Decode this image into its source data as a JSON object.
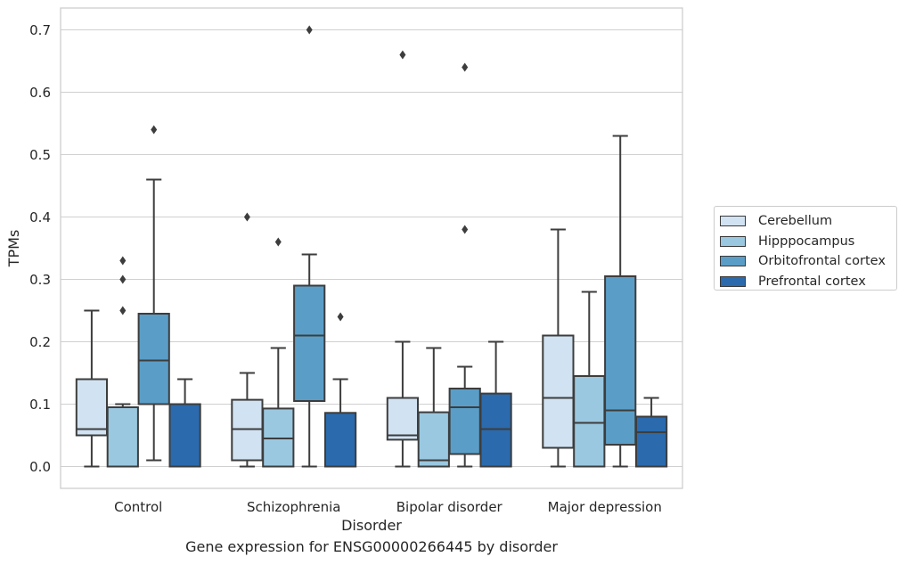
{
  "chart_data": {
    "type": "box",
    "title": "",
    "caption": "Gene expression for ENSG00000266445 by disorder",
    "xlabel": "Disorder",
    "ylabel": "TPMs",
    "ylim": [
      -0.035,
      0.735
    ],
    "yticks": [
      0.0,
      0.1,
      0.2,
      0.3,
      0.4,
      0.5,
      0.6,
      0.7
    ],
    "ytick_labels": [
      "0.0",
      "0.1",
      "0.2",
      "0.3",
      "0.4",
      "0.5",
      "0.6",
      "0.7"
    ],
    "grid": "horizontal",
    "legend_position": "right",
    "categories": [
      "Control",
      "Schizophrenia",
      "Bipolar disorder",
      "Major depression"
    ],
    "series": [
      {
        "name": "Cerebellum",
        "color": "#d1e2f2",
        "boxes": [
          {
            "q1": 0.05,
            "median": 0.06,
            "q3": 0.14,
            "whisker_low": 0.0,
            "whisker_high": 0.25,
            "outliers": []
          },
          {
            "q1": 0.01,
            "median": 0.06,
            "q3": 0.107,
            "whisker_low": 0.0,
            "whisker_high": 0.15,
            "outliers": [
              0.4
            ]
          },
          {
            "q1": 0.043,
            "median": 0.05,
            "q3": 0.11,
            "whisker_low": 0.0,
            "whisker_high": 0.2,
            "outliers": [
              0.66
            ]
          },
          {
            "q1": 0.03,
            "median": 0.11,
            "q3": 0.21,
            "whisker_low": 0.0,
            "whisker_high": 0.38,
            "outliers": []
          }
        ]
      },
      {
        "name": "Hipppocampus",
        "color": "#9ac8e0",
        "boxes": [
          {
            "q1": 0.0,
            "median": 0.0,
            "q3": 0.095,
            "whisker_low": 0.0,
            "whisker_high": 0.1,
            "outliers": [
              0.25,
              0.3,
              0.33
            ]
          },
          {
            "q1": 0.0,
            "median": 0.045,
            "q3": 0.093,
            "whisker_low": 0.0,
            "whisker_high": 0.19,
            "outliers": [
              0.36
            ]
          },
          {
            "q1": 0.0,
            "median": 0.01,
            "q3": 0.087,
            "whisker_low": 0.0,
            "whisker_high": 0.19,
            "outliers": []
          },
          {
            "q1": 0.0,
            "median": 0.07,
            "q3": 0.145,
            "whisker_low": 0.0,
            "whisker_high": 0.28,
            "outliers": []
          }
        ]
      },
      {
        "name": "Orbitofrontal cortex",
        "color": "#5a9ec8",
        "boxes": [
          {
            "q1": 0.1,
            "median": 0.17,
            "q3": 0.245,
            "whisker_low": 0.01,
            "whisker_high": 0.46,
            "outliers": [
              0.54
            ]
          },
          {
            "q1": 0.105,
            "median": 0.21,
            "q3": 0.29,
            "whisker_low": 0.0,
            "whisker_high": 0.34,
            "outliers": [
              0.7
            ]
          },
          {
            "q1": 0.02,
            "median": 0.095,
            "q3": 0.125,
            "whisker_low": 0.0,
            "whisker_high": 0.16,
            "outliers": [
              0.38,
              0.64
            ]
          },
          {
            "q1": 0.035,
            "median": 0.09,
            "q3": 0.305,
            "whisker_low": 0.0,
            "whisker_high": 0.53,
            "outliers": []
          }
        ]
      },
      {
        "name": "Prefrontal cortex",
        "color": "#2a6aad",
        "boxes": [
          {
            "q1": 0.0,
            "median": 0.0,
            "q3": 0.1,
            "whisker_low": 0.0,
            "whisker_high": 0.14,
            "outliers": []
          },
          {
            "q1": 0.0,
            "median": 0.0,
            "q3": 0.086,
            "whisker_low": 0.0,
            "whisker_high": 0.14,
            "outliers": [
              0.24
            ]
          },
          {
            "q1": 0.0,
            "median": 0.06,
            "q3": 0.117,
            "whisker_low": 0.0,
            "whisker_high": 0.2,
            "outliers": []
          },
          {
            "q1": 0.0,
            "median": 0.055,
            "q3": 0.08,
            "whisker_low": 0.0,
            "whisker_high": 0.11,
            "outliers": []
          }
        ]
      }
    ]
  }
}
